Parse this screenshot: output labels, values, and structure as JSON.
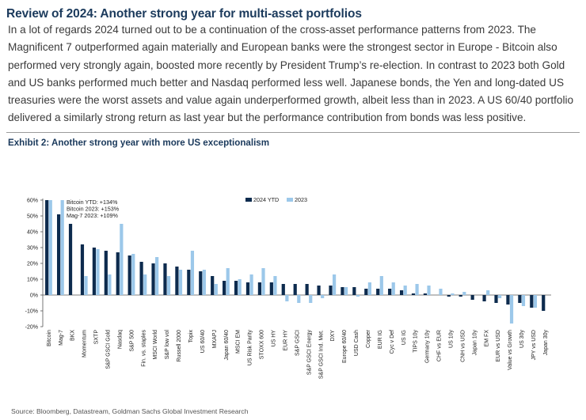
{
  "headline": "Review of 2024: Another strong year for multi-asset portfolios",
  "body_text": "In a lot of regards 2024 turned out to be a continuation of the cross-asset performance patterns from 2023. The Magnificent 7 outperformed again materially and European banks were the strongest sector in Europe - Bitcoin also performed very strongly again, boosted more recently by President Trump’s re-election. In contrast to 2023 both Gold and US banks performed much better and Nasdaq performed less well. Japanese bonds, the Yen and long-dated US treasuries were the worst assets and value again underperformed growth, albeit less than in 2023. A US 60/40 portfolio delivered a similarly strong return as last year but the performance contribution from bonds was less positive.",
  "exhibit_title": "Exhibit 2: Another strong year with more US exceptionalism",
  "source": "Source: Bloomberg, Datastream, Goldman Sachs Global Investment Research",
  "colors": {
    "series_2024": "#0d2b4e",
    "series_2023": "#9cc8ea",
    "headline": "#1b3a5c"
  },
  "chart_data": {
    "type": "bar",
    "title": "Exhibit 2: Another strong year with more US exceptionalism",
    "xlabel": "",
    "ylabel": "",
    "ylim": [
      -20,
      60
    ],
    "yticks": [
      -20,
      -10,
      0,
      10,
      20,
      30,
      40,
      50,
      60
    ],
    "ytick_labels": [
      "-20%",
      "-10%",
      "0%",
      "10%",
      "20%",
      "30%",
      "40%",
      "50%",
      "60%"
    ],
    "legend_position": "top-center",
    "annotations": [
      "Bitcoin YTD: +134%",
      "Bitcoin 2023: +153%",
      "Mag-7  2023: +109%"
    ],
    "categories": [
      "Bitcoin",
      "Mag-7",
      "BKX",
      "Momentum",
      "SXTP",
      "S&P GSCI Gold",
      "Nasdaq",
      "S&P 500",
      "Fin. vs. staples",
      "MSCI World",
      "S&P low vol",
      "Russell 2000",
      "Topix",
      "US 60/40",
      "MXAPJ",
      "Japan 60/40",
      "MSCI EM",
      "US Risk Parity",
      "STOXX 600",
      "US HY",
      "EUR HY",
      "S&P GSCI",
      "S&P GSCI Energy",
      "S&P GSCI Ind. Met.",
      "DXY",
      "Europe 60/40",
      "USD Cash",
      "Copper",
      "EUR IG",
      "Cyc v Def",
      "US IG",
      "TIPS 10y",
      "Germany 10y",
      "CHF vs EUR",
      "US 10y",
      "CNH vs USD",
      "Japan 10y",
      "EM FX",
      "EUR vs USD",
      "Value vs Growth",
      "US 30y",
      "JPY vs USD",
      "Japan 30y"
    ],
    "series": [
      {
        "name": "2024 YTD",
        "values": [
          60,
          51,
          45,
          32,
          30,
          28,
          27,
          25,
          21,
          20,
          20,
          18,
          16,
          15,
          12,
          9,
          9,
          8,
          8,
          8,
          7,
          7,
          7,
          6,
          6,
          5,
          5,
          4,
          4,
          4,
          3,
          1,
          1,
          0,
          -1,
          -1,
          -3,
          -4,
          -5,
          -6,
          -5,
          -8,
          -10
        ]
      },
      {
        "name": "2023",
        "values": [
          60,
          60,
          0,
          12,
          29,
          13,
          45,
          26,
          13,
          24,
          12,
          16,
          28,
          16,
          7,
          17,
          10,
          13,
          17,
          12,
          -4,
          -5,
          -5,
          -2,
          13,
          5,
          -1,
          8,
          12,
          8,
          6,
          7,
          6,
          4,
          1,
          2,
          0,
          3,
          -2,
          -18,
          -7,
          -8,
          0
        ]
      }
    ]
  }
}
